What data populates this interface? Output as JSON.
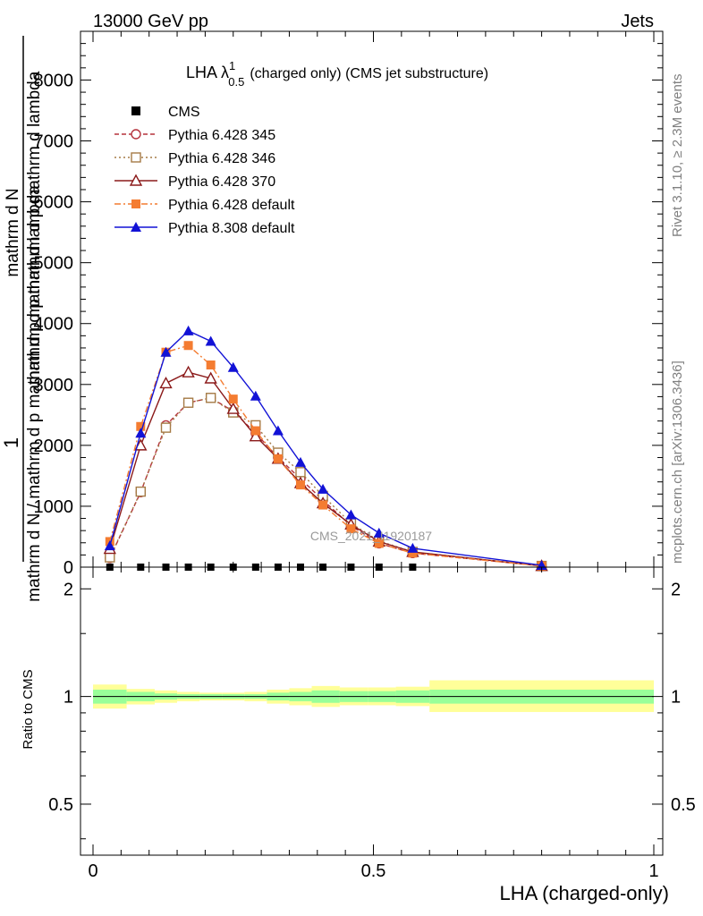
{
  "header": {
    "left": "13000 GeV pp",
    "right": "Jets"
  },
  "side_labels": {
    "rivet": "Rivet 3.1.10, ≥ 2.3M events",
    "mcplots": "mcplots.cern.ch [arXiv:1306.3436]"
  },
  "watermark": "CMS_2021_I1920187",
  "chart_data": [
    {
      "type": "line",
      "title_main": "LHA λ",
      "title_sup": "1",
      "title_sub": "0.5",
      "title_rest": "(charged only) (CMS jet substructure)",
      "ylabel_parts": [
        "1",
        "mathrm d N",
        "mathrm d N",
        "mathrm d p",
        "mathrm d p",
        "mathrm d lambda"
      ],
      "ylabel_fraction_top": "1",
      "ylabel_fraction_bottom": "mathrm d N / mathrm d p mathrm d p mathrm d lambda",
      "ylabel_dN": "mathrm d N",
      "ylabel_den": "mathrm d p mathrm d p mathrm d lambda",
      "xlim": [
        0,
        1
      ],
      "ylim": [
        0,
        8800
      ],
      "yticks": [
        0,
        1000,
        2000,
        3000,
        4000,
        5000,
        6000,
        7000,
        8000
      ],
      "ytick_labels": [
        "0",
        "1000",
        "2000",
        "3000",
        "4000",
        "5000",
        "6000",
        "7000",
        "8000"
      ],
      "legend_position": "top-left",
      "x": [
        0.03,
        0.085,
        0.13,
        0.17,
        0.21,
        0.25,
        0.29,
        0.33,
        0.37,
        0.41,
        0.46,
        0.51,
        0.57,
        0.8
      ],
      "series": [
        {
          "name": "CMS",
          "color": "#000000",
          "marker": "square-filled",
          "line": "none",
          "values": [
            0,
            0,
            0,
            0,
            0,
            0,
            0,
            0,
            0,
            0,
            0,
            0,
            0,
            null
          ]
        },
        {
          "name": "Pythia 6.428 345",
          "color": "#b5323c",
          "marker": "circle-open",
          "line": "dashed",
          "values": [
            150,
            1230,
            2330,
            2700,
            2780,
            2560,
            2200,
            1800,
            1450,
            1100,
            680,
            390,
            230,
            20
          ]
        },
        {
          "name": "Pythia 6.428 346",
          "color": "#a57b46",
          "marker": "square-open",
          "line": "dotted",
          "values": [
            160,
            1240,
            2290,
            2700,
            2780,
            2540,
            2330,
            1880,
            1560,
            1170,
            720,
            430,
            250,
            20
          ]
        },
        {
          "name": "Pythia 6.428 370",
          "color": "#8b1a1a",
          "marker": "triangle-open",
          "line": "solid",
          "values": [
            300,
            2000,
            3020,
            3200,
            3100,
            2600,
            2150,
            1780,
            1380,
            1050,
            700,
            420,
            250,
            20
          ]
        },
        {
          "name": "Pythia 6.428 default",
          "color": "#f47c31",
          "marker": "square-filled",
          "line": "dashdot",
          "values": [
            420,
            2310,
            3530,
            3640,
            3320,
            2760,
            2240,
            1780,
            1350,
            1020,
            630,
            390,
            230,
            20
          ]
        },
        {
          "name": "Pythia 8.308 default",
          "color": "#1212d6",
          "marker": "triangle-filled",
          "line": "solid",
          "values": [
            350,
            2200,
            3530,
            3880,
            3710,
            3280,
            2810,
            2240,
            1720,
            1280,
            860,
            560,
            310,
            30
          ]
        }
      ]
    },
    {
      "type": "area",
      "ylabel": "Ratio to CMS",
      "xlabel": "LHA (charged-only)",
      "xlim": [
        0,
        1
      ],
      "ylim": [
        0.36,
        2.3
      ],
      "xticks": [
        0,
        0.5,
        1
      ],
      "xtick_labels": [
        "0",
        "0.5",
        "1"
      ],
      "yticks": [
        0.5,
        1,
        2
      ],
      "ytick_labels": [
        "0.5",
        "1",
        "2"
      ],
      "reference_line": 1,
      "bins": [
        0,
        0.06,
        0.11,
        0.15,
        0.19,
        0.23,
        0.27,
        0.31,
        0.35,
        0.39,
        0.44,
        0.49,
        0.54,
        0.6,
        1.0
      ],
      "band_inner": [
        [
          0.955,
          1.045
        ],
        [
          0.97,
          1.03
        ],
        [
          0.98,
          1.02
        ],
        [
          0.985,
          1.015
        ],
        [
          0.985,
          1.015
        ],
        [
          0.985,
          1.015
        ],
        [
          0.985,
          1.015
        ],
        [
          0.975,
          1.025
        ],
        [
          0.97,
          1.03
        ],
        [
          0.96,
          1.04
        ],
        [
          0.965,
          1.035
        ],
        [
          0.965,
          1.035
        ],
        [
          0.96,
          1.04
        ],
        [
          0.955,
          1.045
        ]
      ],
      "band_outer": [
        [
          0.925,
          1.08
        ],
        [
          0.95,
          1.05
        ],
        [
          0.96,
          1.04
        ],
        [
          0.97,
          1.03
        ],
        [
          0.975,
          1.025
        ],
        [
          0.975,
          1.025
        ],
        [
          0.97,
          1.03
        ],
        [
          0.955,
          1.045
        ],
        [
          0.945,
          1.055
        ],
        [
          0.935,
          1.07
        ],
        [
          0.945,
          1.06
        ],
        [
          0.945,
          1.06
        ],
        [
          0.94,
          1.065
        ],
        [
          0.905,
          1.11
        ]
      ],
      "colors": {
        "outer": "#ffff99",
        "inner": "#99ff99"
      }
    }
  ]
}
